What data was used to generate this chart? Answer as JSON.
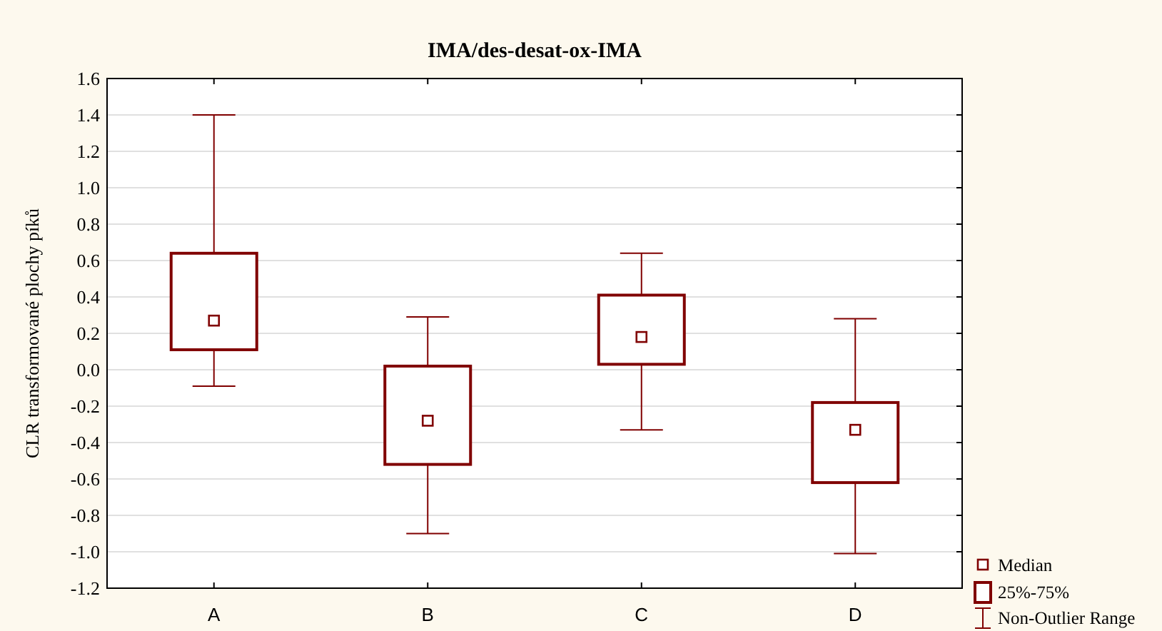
{
  "chart_data": {
    "type": "box",
    "title": "IMA/des-desat-ox-IMA",
    "ylabel": "CLR transformované plochy píků",
    "categories": [
      "A",
      "B",
      "C",
      "D"
    ],
    "color": "#800000",
    "boxes": [
      {
        "low": -0.09,
        "q1": 0.11,
        "median": 0.27,
        "q3": 0.64,
        "high": 1.4
      },
      {
        "low": -0.9,
        "q1": -0.52,
        "median": -0.28,
        "q3": 0.02,
        "high": 0.29
      },
      {
        "low": -0.33,
        "q1": 0.03,
        "median": 0.18,
        "q3": 0.41,
        "high": 0.64
      },
      {
        "low": -1.01,
        "q1": -0.62,
        "median": -0.33,
        "q3": -0.18,
        "high": 0.28
      }
    ],
    "ylim": [
      -1.2,
      1.6
    ],
    "yticks": [
      {
        "value": -1.2,
        "label": "-1.2"
      },
      {
        "value": -1,
        "label": "-1.0"
      },
      {
        "value": -0.8,
        "label": "-0.8"
      },
      {
        "value": -0.6,
        "label": "-0.6"
      },
      {
        "value": -0.4,
        "label": "-0.4"
      },
      {
        "value": -0.2,
        "label": "-0.2"
      },
      {
        "value": 0,
        "label": "0.0"
      },
      {
        "value": 0.2,
        "label": "0.2"
      },
      {
        "value": 0.4,
        "label": "0.4"
      },
      {
        "value": 0.6,
        "label": "0.6"
      },
      {
        "value": 0.8,
        "label": "0.8"
      },
      {
        "value": 1,
        "label": "1.0"
      },
      {
        "value": 1.2,
        "label": "1.2"
      },
      {
        "value": 1.4,
        "label": "1.4"
      },
      {
        "value": 1.6,
        "label": "1.6"
      }
    ],
    "grid": "y",
    "marker": "square",
    "annotations": [
      "Median",
      "25%-75%",
      "Non-Outlier Range"
    ]
  }
}
